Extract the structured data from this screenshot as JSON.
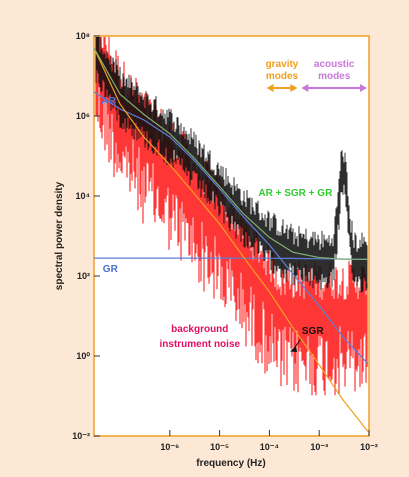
{
  "chart_data": {
    "type": "line",
    "xscale": "log",
    "yscale": "log",
    "xlim": [
      3e-08,
      0.01
    ],
    "ylim": [
      0.01,
      100000000
    ],
    "xlabel": "frequency (Hz)",
    "ylabel": "spectral power density",
    "x_ticks": [
      {
        "value": 1e-06,
        "label": "10⁻⁶"
      },
      {
        "value": 1e-05,
        "label": "10⁻⁵"
      },
      {
        "value": 0.0001,
        "label": "10⁻⁴"
      },
      {
        "value": 0.001,
        "label": "10⁻³"
      },
      {
        "value": 0.01,
        "label": "10⁻²"
      }
    ],
    "y_ticks": [
      {
        "value": 0.01,
        "label": "10⁻²"
      },
      {
        "value": 1,
        "label": "10⁰"
      },
      {
        "value": 100,
        "label": "10²"
      },
      {
        "value": 10000,
        "label": "10⁴"
      },
      {
        "value": 1000000,
        "label": "10⁶"
      },
      {
        "value": 100000000,
        "label": "10⁸"
      }
    ],
    "grid": false,
    "series": [
      {
        "name": "AR",
        "color": "#5b7fd6",
        "x": [
          3e-08,
          1e-07,
          3e-07,
          1e-06,
          3e-06,
          1e-05,
          3e-05,
          0.0001,
          0.0003,
          0.001,
          0.003,
          0.01
        ],
        "y": [
          4000000,
          1500000,
          800000,
          300000,
          80000,
          15000,
          3000,
          600,
          110,
          18,
          3,
          0.6
        ]
      },
      {
        "name": "GR",
        "color": "#5b7fd6",
        "x": [
          3e-08,
          1e-07,
          1e-06,
          1e-05,
          3e-05,
          0.0001,
          0.0003,
          0.001,
          0.01
        ],
        "y": [
          280,
          280,
          280,
          280,
          279,
          278,
          275,
          270,
          260
        ]
      },
      {
        "name": "SGR",
        "color": "#f0a020",
        "x": [
          3e-08,
          1e-07,
          3e-07,
          1e-06,
          3e-06,
          1e-05,
          3e-05,
          0.0001,
          0.0003,
          0.001,
          0.003,
          0.01
        ],
        "y": [
          50000000,
          2000000,
          300000,
          60000,
          12000,
          2000,
          300,
          40,
          5,
          0.6,
          0.08,
          0.012
        ]
      },
      {
        "name": "AR + SGR + GR",
        "color": "#7fb070",
        "x": [
          3e-08,
          1e-07,
          3e-07,
          1e-06,
          3e-06,
          1e-05,
          3e-05,
          0.0001,
          0.0003,
          0.001,
          0.003,
          0.01
        ],
        "y": [
          50000000,
          3500000,
          1100000,
          360000,
          92000,
          17300,
          3600,
          920,
          390,
          290,
          263,
          260
        ]
      }
    ],
    "peak": {
      "x": 0.003,
      "y": 50000
    },
    "annotations": [
      {
        "text": "AR",
        "color": "#4a6fd0"
      },
      {
        "text": "GR",
        "color": "#4a6fd0"
      },
      {
        "text": "SGR",
        "color": "#111111"
      },
      {
        "text": "AR + SGR + GR",
        "color": "#33cc33"
      },
      {
        "text": "background",
        "color": "#e01060"
      },
      {
        "text": "instrument noise",
        "color": "#e01060"
      }
    ],
    "bands": [
      {
        "line1": "gravity",
        "line2": "modes",
        "from": 8e-05,
        "to": 0.0004,
        "color": "#f0a020"
      },
      {
        "line1": "acoustic",
        "line2": "modes",
        "from": 0.0004,
        "to": 0.01,
        "color": "#c878d8"
      }
    ],
    "colors": {
      "page_background": "#fce8d4",
      "plot_background": "#ffffff",
      "plot_frame": "#f0a020",
      "observed_spectrum": "#111111",
      "noise": "#ff2020"
    }
  }
}
